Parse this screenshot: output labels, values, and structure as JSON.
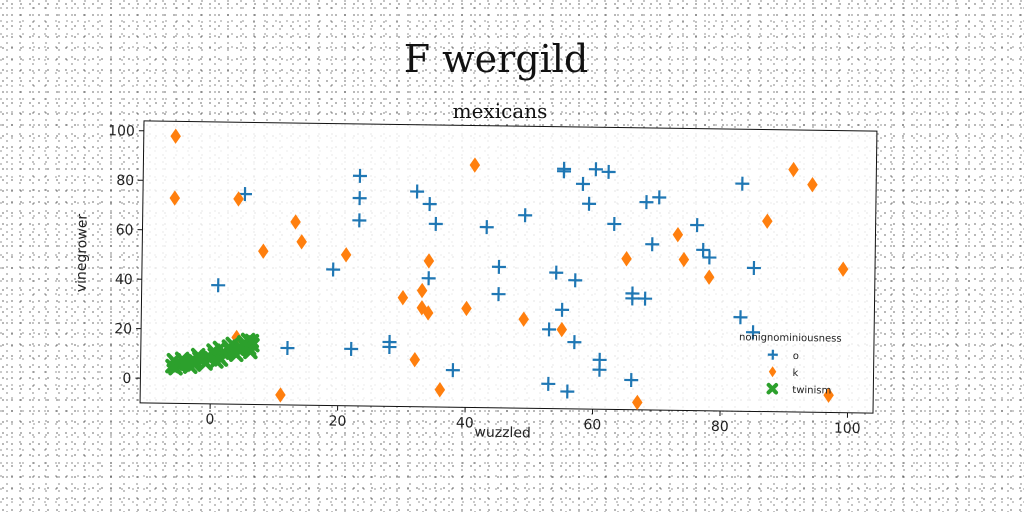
{
  "figure": {
    "suptitle": "F wergild"
  },
  "chart_data": {
    "type": "scatter",
    "title": "mexicans",
    "xlabel": "wuzzled",
    "ylabel": "vinegrower",
    "xlim": [
      -11,
      104
    ],
    "ylim": [
      -10,
      104
    ],
    "x_ticks": [
      0,
      20,
      40,
      60,
      80,
      100
    ],
    "y_ticks": [
      0,
      20,
      40,
      60,
      80,
      100
    ],
    "grid": false,
    "legend": {
      "title": "nonignominiousness",
      "placement": "lower right"
    },
    "series": [
      {
        "name": "o",
        "color": "#1f77b4",
        "marker": "plus",
        "points": [
          [
            1,
            38
          ],
          [
            5,
            75
          ],
          [
            12,
            13
          ],
          [
            19,
            45
          ],
          [
            22,
            13
          ],
          [
            23,
            83
          ],
          [
            23,
            74
          ],
          [
            23,
            65
          ],
          [
            28,
            16
          ],
          [
            28,
            14
          ],
          [
            32,
            77
          ],
          [
            34,
            72
          ],
          [
            34,
            42
          ],
          [
            35,
            64
          ],
          [
            38,
            5
          ],
          [
            43,
            63
          ],
          [
            45,
            47
          ],
          [
            45,
            36
          ],
          [
            49,
            68
          ],
          [
            53,
            0
          ],
          [
            53,
            22
          ],
          [
            54,
            45
          ],
          [
            55,
            87
          ],
          [
            55,
            86
          ],
          [
            55,
            30
          ],
          [
            56,
            -3
          ],
          [
            57,
            17
          ],
          [
            57,
            42
          ],
          [
            58,
            81
          ],
          [
            59,
            73
          ],
          [
            60,
            87
          ],
          [
            61,
            10
          ],
          [
            61,
            6
          ],
          [
            62,
            86
          ],
          [
            63,
            65
          ],
          [
            66,
            2
          ],
          [
            66,
            37
          ],
          [
            66,
            35
          ],
          [
            68,
            74
          ],
          [
            68,
            35
          ],
          [
            69,
            57
          ],
          [
            70,
            76
          ],
          [
            76,
            65
          ],
          [
            77,
            55
          ],
          [
            78,
            52
          ],
          [
            83,
            82
          ],
          [
            83,
            28
          ],
          [
            85,
            48
          ],
          [
            85,
            22
          ]
        ]
      },
      {
        "name": "k",
        "color": "#ff7f0e",
        "marker": "diamond",
        "points": [
          [
            -6,
            98
          ],
          [
            -6,
            73
          ],
          [
            4,
            73
          ],
          [
            4,
            17
          ],
          [
            8,
            52
          ],
          [
            11,
            -6
          ],
          [
            13,
            64
          ],
          [
            14,
            56
          ],
          [
            21,
            51
          ],
          [
            30,
            34
          ],
          [
            32,
            9
          ],
          [
            33,
            37
          ],
          [
            33,
            30
          ],
          [
            34,
            28
          ],
          [
            34,
            49
          ],
          [
            36,
            -3
          ],
          [
            40,
            30
          ],
          [
            41,
            88
          ],
          [
            49,
            26
          ],
          [
            55,
            22
          ],
          [
            65,
            51
          ],
          [
            67,
            -7
          ],
          [
            73,
            61
          ],
          [
            74,
            51
          ],
          [
            78,
            44
          ],
          [
            87,
            67
          ],
          [
            91,
            88
          ],
          [
            94,
            82
          ],
          [
            97,
            -3
          ],
          [
            99,
            48
          ]
        ]
      },
      {
        "name": "twinism",
        "color": "#2ca02c",
        "marker": "x",
        "points": [
          [
            -6.0,
            5.0
          ],
          [
            -5.4,
            6.2
          ],
          [
            -4.8,
            5.4
          ],
          [
            -4.2,
            7.1
          ],
          [
            -3.6,
            6.0
          ],
          [
            -3.0,
            7.6
          ],
          [
            -2.4,
            7.0
          ],
          [
            -1.8,
            8.3
          ],
          [
            -1.2,
            7.7
          ],
          [
            -0.6,
            9.0
          ],
          [
            0.0,
            8.4
          ],
          [
            0.6,
            9.9
          ],
          [
            1.2,
            9.2
          ],
          [
            1.8,
            10.8
          ],
          [
            2.4,
            10.1
          ],
          [
            3.0,
            11.6
          ],
          [
            3.6,
            11.0
          ],
          [
            4.2,
            12.4
          ],
          [
            4.8,
            11.9
          ],
          [
            5.4,
            13.2
          ],
          [
            6.0,
            12.6
          ],
          [
            6.5,
            14.0
          ],
          [
            -5.5,
            4.2
          ],
          [
            -4.5,
            8.0
          ],
          [
            -3.2,
            4.9
          ],
          [
            -2.0,
            9.6
          ],
          [
            -0.8,
            6.3
          ],
          [
            0.4,
            11.5
          ],
          [
            1.6,
            8.0
          ],
          [
            2.8,
            13.2
          ],
          [
            4.0,
            10.0
          ],
          [
            5.2,
            15.0
          ],
          [
            6.2,
            11.2
          ],
          [
            -5.8,
            7.4
          ],
          [
            -2.6,
            5.8
          ],
          [
            0.9,
            7.2
          ],
          [
            3.4,
            14.3
          ],
          [
            5.8,
            16.0
          ],
          [
            -4.0,
            6.6
          ],
          [
            1.4,
            12.6
          ],
          [
            4.6,
            13.0
          ],
          [
            6.4,
            15.6
          ]
        ]
      }
    ]
  }
}
